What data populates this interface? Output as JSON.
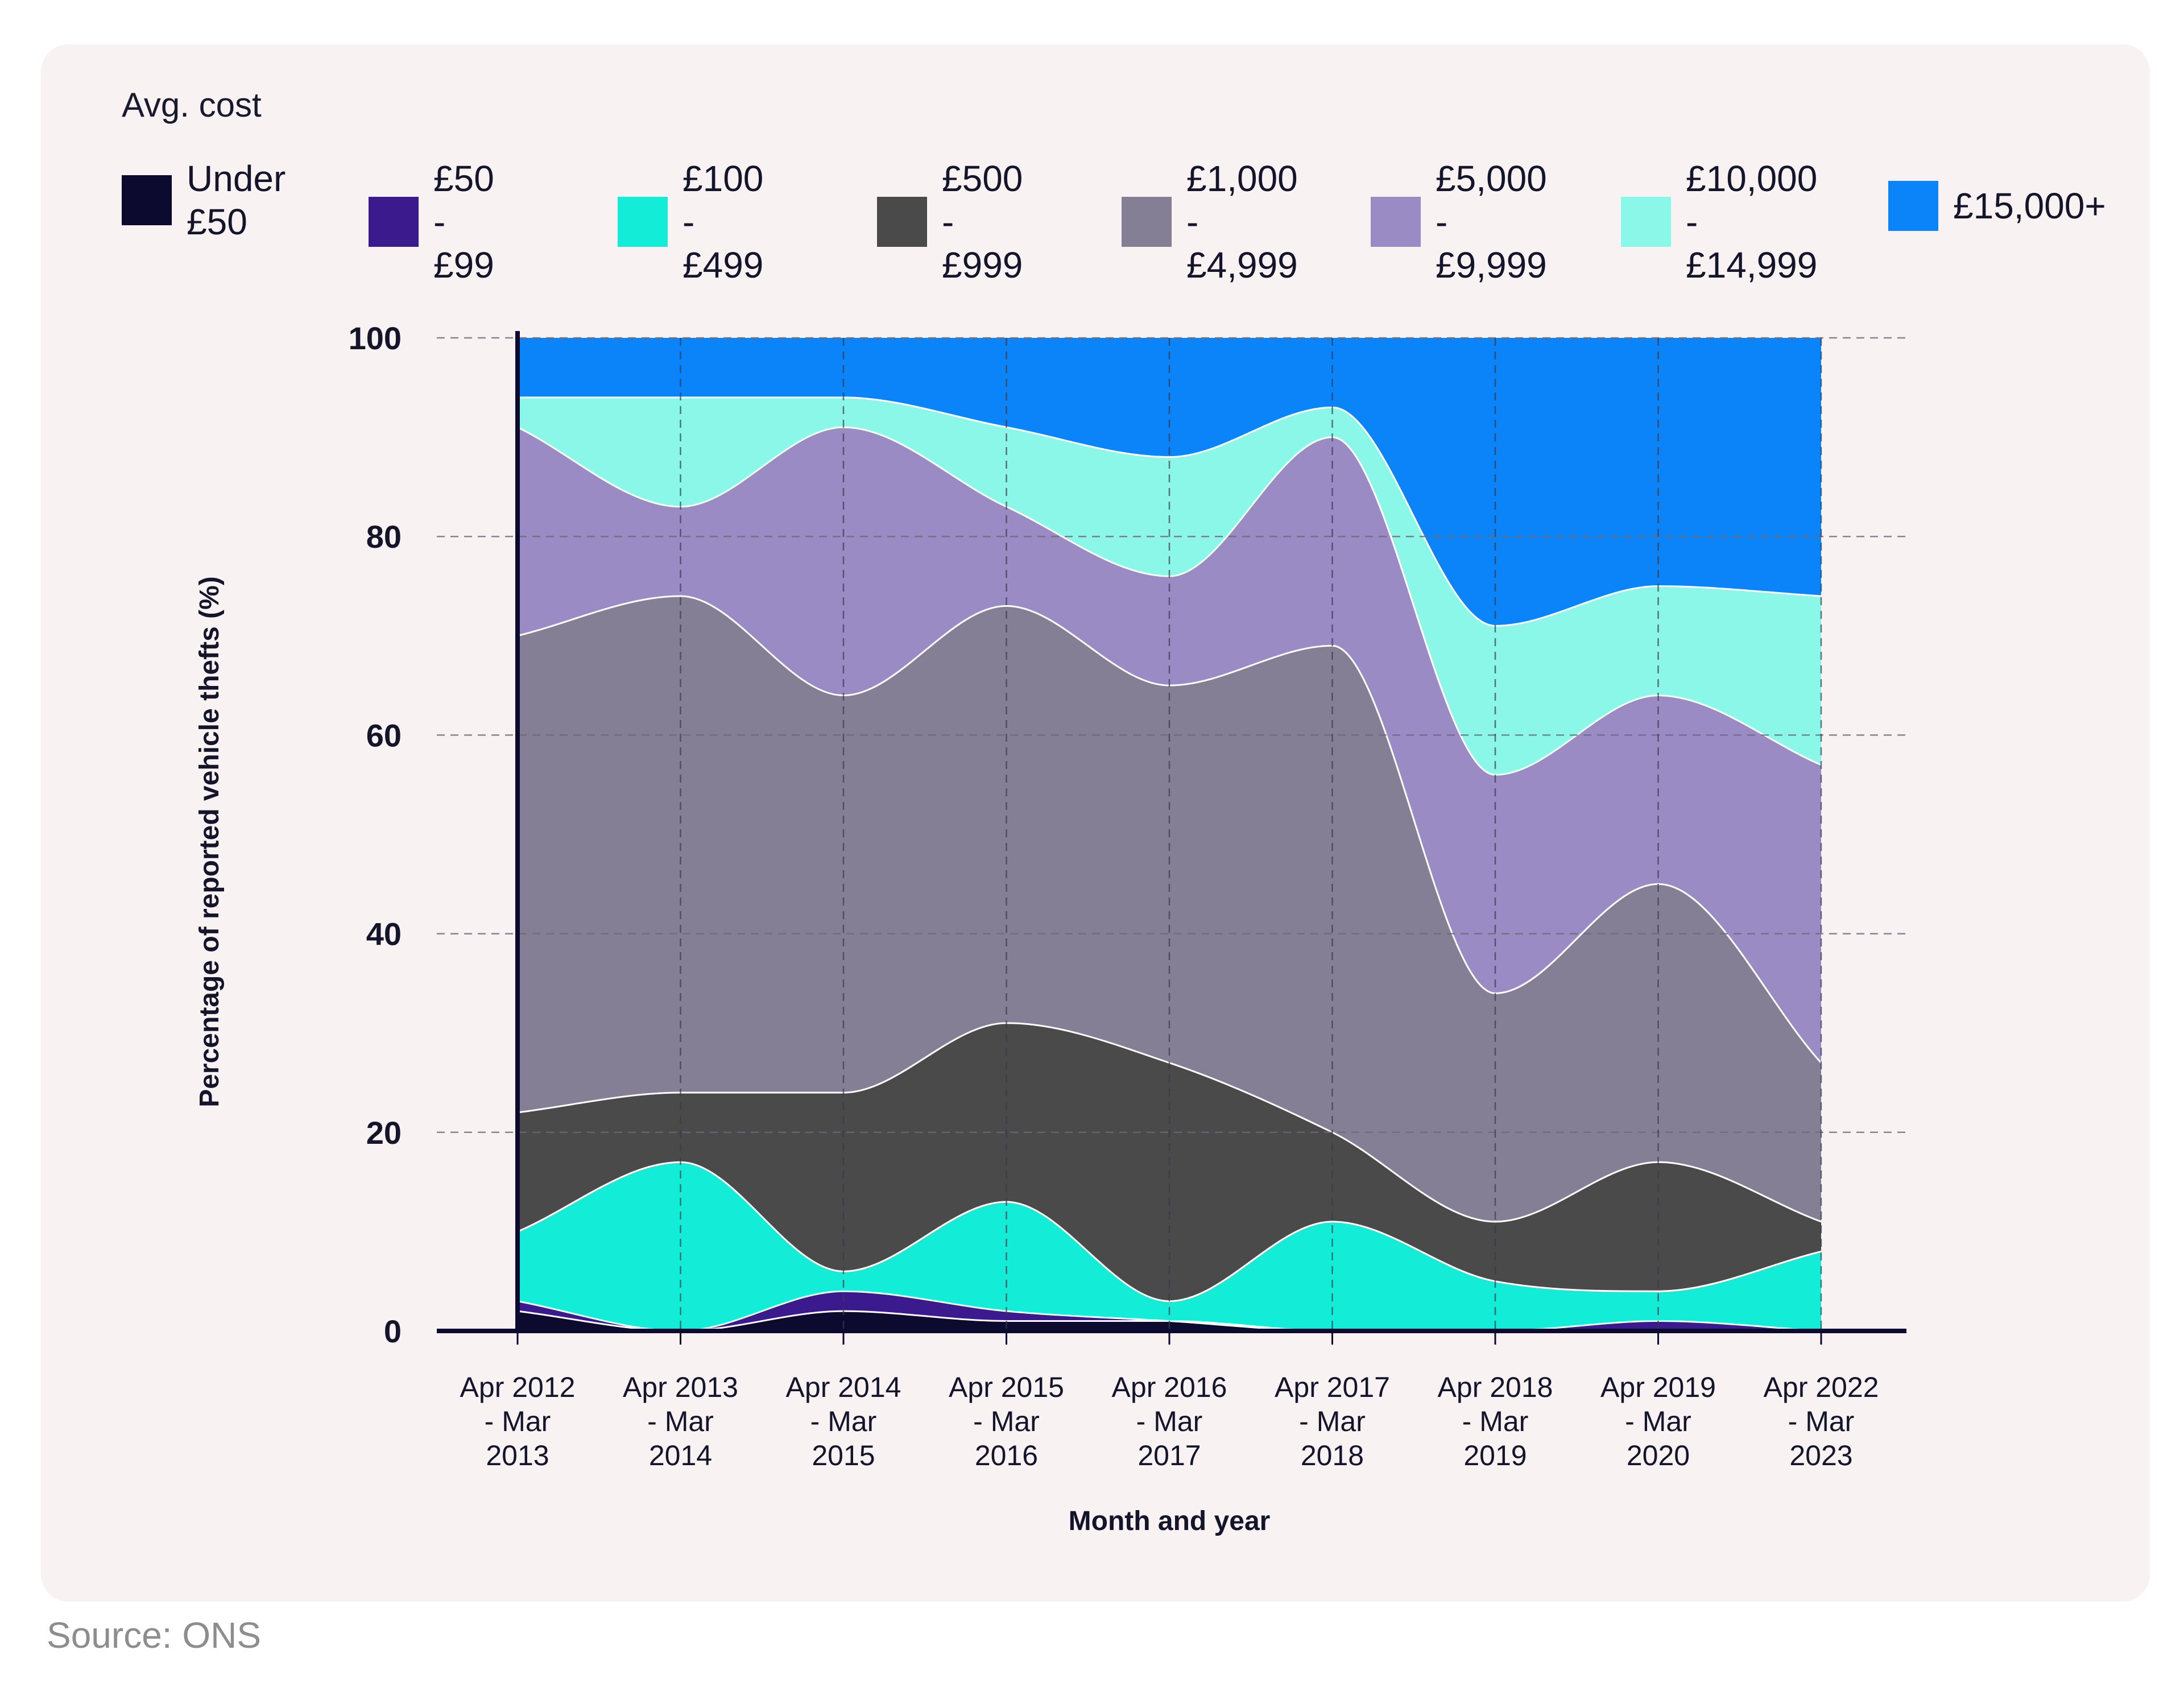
{
  "legend": {
    "title": "Avg. cost",
    "items": [
      {
        "label": "Under\n£50",
        "color": "#0c0a2e"
      },
      {
        "label": "£50 -\n£99",
        "color": "#3a1a8c"
      },
      {
        "label": "£100 -\n£499",
        "color": "#13ecd6"
      },
      {
        "label": "£500 -\n£999",
        "color": "#4a4a4a"
      },
      {
        "label": "£1,000 -\n£4,999",
        "color": "#857f96"
      },
      {
        "label": "£5,000 -\n£9,999",
        "color": "#9a8bc5"
      },
      {
        "label": "£10,000 -\n£14,999",
        "color": "#8bf7e8"
      },
      {
        "label": "£15,000+",
        "color": "#0a84f8"
      }
    ]
  },
  "source": "Source: ONS",
  "chart_data": {
    "type": "area",
    "stacked": true,
    "xlabel": "Month and year",
    "ylabel": "Percentage of reported vehicle thefts (%)",
    "ylim": [
      0,
      100
    ],
    "yticks": [
      "0",
      "20",
      "40",
      "60",
      "80",
      "100"
    ],
    "grid": true,
    "categories": [
      [
        "Apr 2012",
        "- Mar",
        "2013"
      ],
      [
        "Apr 2013",
        "- Mar",
        "2014"
      ],
      [
        "Apr 2014",
        "- Mar",
        "2015"
      ],
      [
        "Apr 2015",
        "- Mar",
        "2016"
      ],
      [
        "Apr 2016",
        "- Mar",
        "2017"
      ],
      [
        "Apr 2017",
        "- Mar",
        "2018"
      ],
      [
        "Apr 2018",
        "- Mar",
        "2019"
      ],
      [
        "Apr 2019",
        "- Mar",
        "2020"
      ],
      [
        "Apr 2022",
        "- Mar",
        "2023"
      ]
    ],
    "series": [
      {
        "name": "Under £50",
        "color": "#0c0a2e",
        "values": [
          2,
          0,
          2,
          1,
          1,
          0,
          0,
          0,
          0
        ]
      },
      {
        "name": "£50 - £99",
        "color": "#3a1a8c",
        "values": [
          1,
          0,
          2,
          1,
          0,
          0,
          0,
          1,
          0
        ]
      },
      {
        "name": "£100 - £499",
        "color": "#13ecd6",
        "values": [
          7,
          17,
          2,
          11,
          2,
          11,
          5,
          3,
          8
        ]
      },
      {
        "name": "£500 - £999",
        "color": "#4a4a4a",
        "values": [
          12,
          7,
          18,
          18,
          24,
          9,
          6,
          13,
          3
        ]
      },
      {
        "name": "£1,000 - £4,999",
        "color": "#857f96",
        "values": [
          48,
          50,
          40,
          42,
          38,
          49,
          23,
          28,
          16
        ]
      },
      {
        "name": "£5,000 - £9,999",
        "color": "#9a8bc5",
        "values": [
          21,
          9,
          27,
          10,
          11,
          21,
          22,
          19,
          30
        ]
      },
      {
        "name": "£10,000 - £14,999",
        "color": "#8bf7e8",
        "values": [
          3,
          11,
          3,
          8,
          12,
          3,
          15,
          11,
          17
        ]
      },
      {
        "name": "£15,000+",
        "color": "#0a84f8",
        "values": [
          6,
          6,
          6,
          9,
          12,
          7,
          29,
          25,
          26
        ]
      }
    ]
  }
}
